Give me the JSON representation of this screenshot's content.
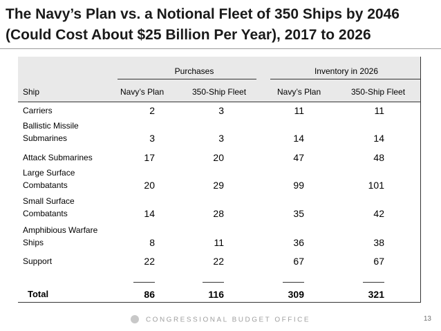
{
  "title": {
    "line1": "The Navy’s Plan vs. a Notional Fleet of 350 Ships by 2046",
    "line2": "(Could Cost About $25 Billion Per Year), 2017 to 2026"
  },
  "table": {
    "group_headers": [
      "Purchases",
      "Inventory in 2026"
    ],
    "column_headers": [
      "Ship",
      "Navy’s Plan",
      "350-Ship Fleet",
      "Navy’s Plan",
      "350-Ship Fleet"
    ],
    "rows": [
      {
        "label1": "Carriers",
        "label2": "",
        "values": [
          "2",
          "3",
          "11",
          "11"
        ]
      },
      {
        "label1": "Ballistic Missile",
        "label2": "Submarines",
        "values": [
          "3",
          "3",
          "14",
          "14"
        ]
      },
      {
        "label1": "Attack Submarines",
        "label2": "",
        "values": [
          "17",
          "20",
          "47",
          "48"
        ]
      },
      {
        "label1": "Large Surface",
        "label2": "Combatants",
        "values": [
          "20",
          "29",
          "99",
          "101"
        ]
      },
      {
        "label1": "Small Surface",
        "label2": "Combatants",
        "values": [
          "14",
          "28",
          "35",
          "42"
        ]
      },
      {
        "label1": "Amphibious Warfare",
        "label2": "Ships",
        "values": [
          "8",
          "11",
          "36",
          "38"
        ]
      },
      {
        "label1": "Support",
        "label2": "",
        "values": [
          "22",
          "22",
          "67",
          "67"
        ]
      }
    ],
    "total": {
      "label": "Total",
      "values": [
        "86",
        "116",
        "309",
        "321"
      ]
    }
  },
  "footer": {
    "org": "CONGRESSIONAL BUDGET OFFICE",
    "page_number": "13"
  },
  "colors": {
    "header_band": "#e9e9e9",
    "footer_text": "#a0a0a0"
  }
}
